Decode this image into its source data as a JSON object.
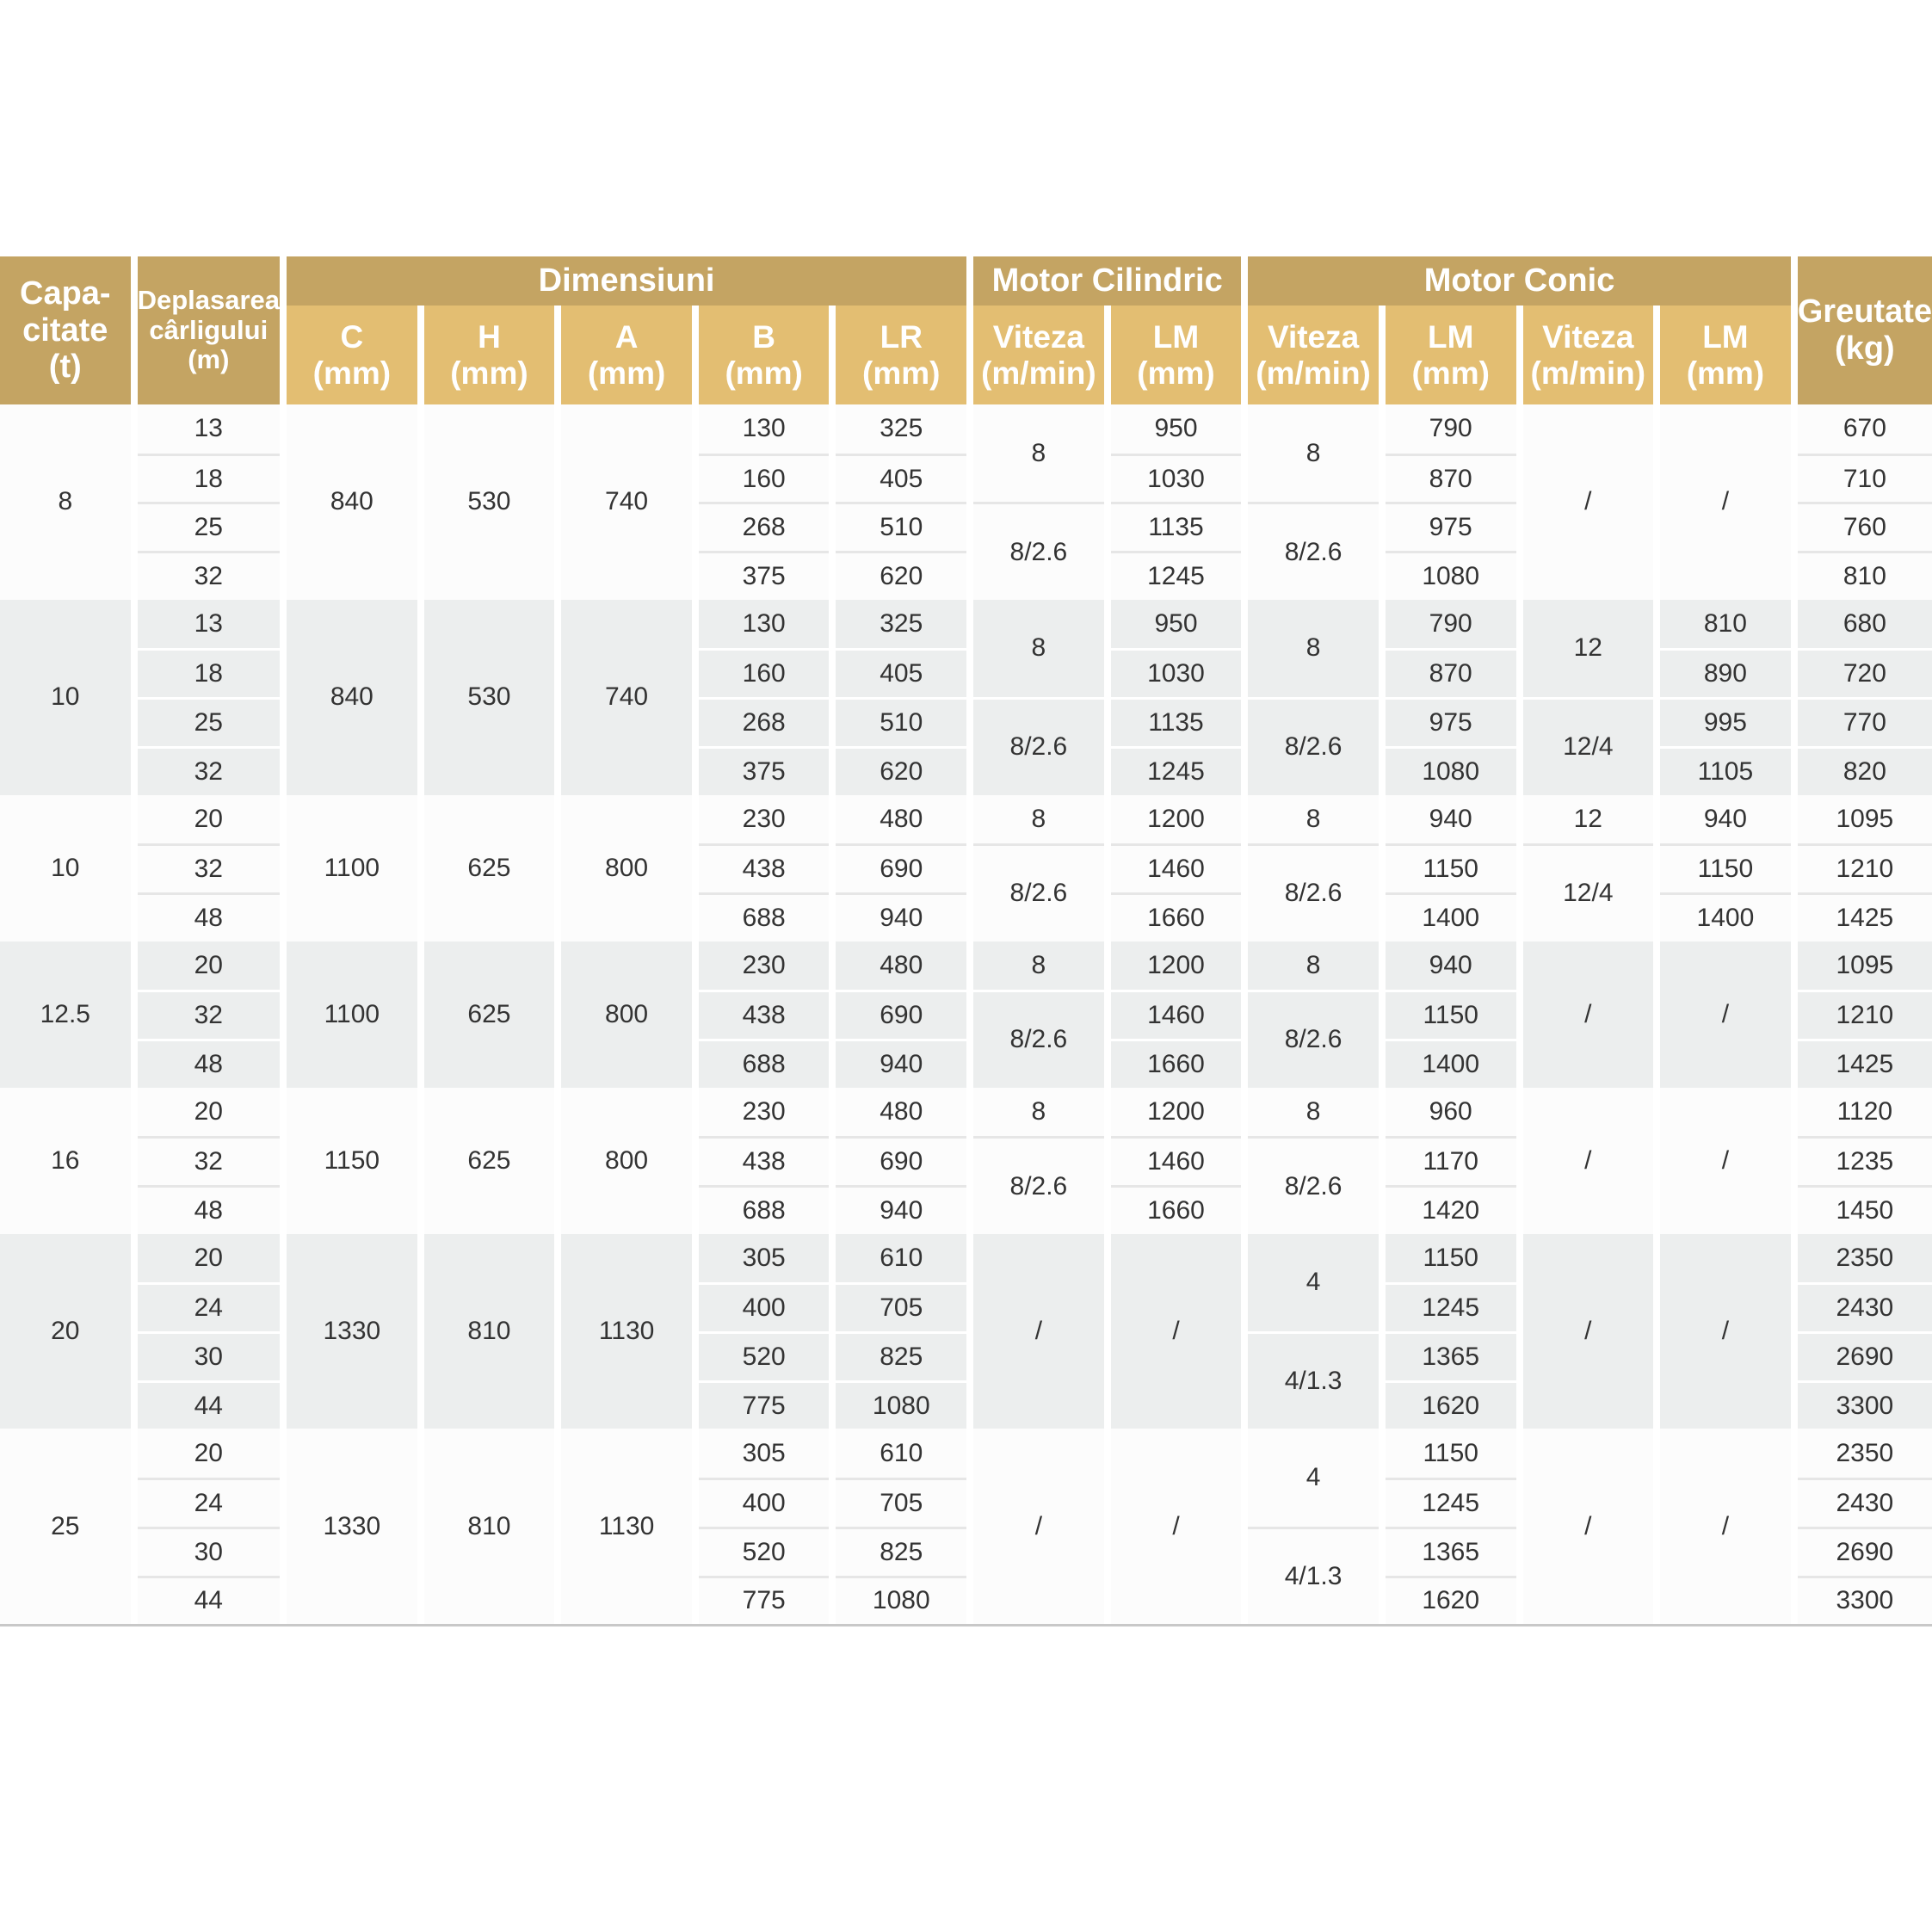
{
  "colors": {
    "header_dark": "#c4a463",
    "header_light": "#e3be72",
    "row_gray": "#eceeee"
  },
  "header": {
    "capacity": "Capa-\ncitate\n(t)",
    "travel": "Deplasarea\ncârligului\n(m)",
    "dimensions": "Dimensiuni",
    "motor_cylindrical": "Motor Cilindric",
    "motor_conic": "Motor Conic",
    "weight": "Greutate\n(kg)",
    "sub": [
      "C\n(mm)",
      "H\n(mm)",
      "A\n(mm)",
      "B\n(mm)",
      "LR\n(mm)",
      "Viteza\n(m/min)",
      "LM\n(mm)",
      "Viteza\n(m/min)",
      "LM\n(mm)",
      "Viteza\n(m/min)",
      "LM\n(mm)"
    ]
  },
  "groups": [
    {
      "rows": 4,
      "cols": [
        [
          {
            "v": "8",
            "s": 4
          }
        ],
        [
          {
            "v": "13"
          },
          {
            "v": "18"
          },
          {
            "v": "25"
          },
          {
            "v": "32"
          }
        ],
        [
          {
            "v": "840",
            "s": 4
          }
        ],
        [
          {
            "v": "530",
            "s": 4
          }
        ],
        [
          {
            "v": "740",
            "s": 4
          }
        ],
        [
          {
            "v": "130"
          },
          {
            "v": "160"
          },
          {
            "v": "268"
          },
          {
            "v": "375"
          }
        ],
        [
          {
            "v": "325"
          },
          {
            "v": "405"
          },
          {
            "v": "510"
          },
          {
            "v": "620"
          }
        ],
        [
          {
            "v": "8",
            "s": 2
          },
          {
            "v": "8/2.6",
            "s": 2
          }
        ],
        [
          {
            "v": "950"
          },
          {
            "v": "1030"
          },
          {
            "v": "1135"
          },
          {
            "v": "1245"
          }
        ],
        [
          {
            "v": "8",
            "s": 2
          },
          {
            "v": "8/2.6",
            "s": 2
          }
        ],
        [
          {
            "v": "790"
          },
          {
            "v": "870"
          },
          {
            "v": "975"
          },
          {
            "v": "1080"
          }
        ],
        [
          {
            "v": "/",
            "s": 4
          }
        ],
        [
          {
            "v": "/",
            "s": 4
          }
        ],
        [
          {
            "v": "670"
          },
          {
            "v": "710"
          },
          {
            "v": "760"
          },
          {
            "v": "810"
          }
        ]
      ]
    },
    {
      "rows": 4,
      "cols": [
        [
          {
            "v": "10",
            "s": 4
          }
        ],
        [
          {
            "v": "13"
          },
          {
            "v": "18"
          },
          {
            "v": "25"
          },
          {
            "v": "32"
          }
        ],
        [
          {
            "v": "840",
            "s": 4
          }
        ],
        [
          {
            "v": "530",
            "s": 4
          }
        ],
        [
          {
            "v": "740",
            "s": 4
          }
        ],
        [
          {
            "v": "130"
          },
          {
            "v": "160"
          },
          {
            "v": "268"
          },
          {
            "v": "375"
          }
        ],
        [
          {
            "v": "325"
          },
          {
            "v": "405"
          },
          {
            "v": "510"
          },
          {
            "v": "620"
          }
        ],
        [
          {
            "v": "8",
            "s": 2
          },
          {
            "v": "8/2.6",
            "s": 2
          }
        ],
        [
          {
            "v": "950"
          },
          {
            "v": "1030"
          },
          {
            "v": "1135"
          },
          {
            "v": "1245"
          }
        ],
        [
          {
            "v": "8",
            "s": 2
          },
          {
            "v": "8/2.6",
            "s": 2
          }
        ],
        [
          {
            "v": "790"
          },
          {
            "v": "870"
          },
          {
            "v": "975"
          },
          {
            "v": "1080"
          }
        ],
        [
          {
            "v": "12",
            "s": 2
          },
          {
            "v": "12/4",
            "s": 2
          }
        ],
        [
          {
            "v": "810"
          },
          {
            "v": "890"
          },
          {
            "v": "995"
          },
          {
            "v": "1105"
          }
        ],
        [
          {
            "v": "680"
          },
          {
            "v": "720"
          },
          {
            "v": "770"
          },
          {
            "v": "820"
          }
        ]
      ]
    },
    {
      "rows": 3,
      "cols": [
        [
          {
            "v": "10",
            "s": 3
          }
        ],
        [
          {
            "v": "20"
          },
          {
            "v": "32"
          },
          {
            "v": "48"
          }
        ],
        [
          {
            "v": "1100",
            "s": 3
          }
        ],
        [
          {
            "v": "625",
            "s": 3
          }
        ],
        [
          {
            "v": "800",
            "s": 3
          }
        ],
        [
          {
            "v": "230"
          },
          {
            "v": "438"
          },
          {
            "v": "688"
          }
        ],
        [
          {
            "v": "480"
          },
          {
            "v": "690"
          },
          {
            "v": "940"
          }
        ],
        [
          {
            "v": "8"
          },
          {
            "v": "8/2.6",
            "s": 2
          }
        ],
        [
          {
            "v": "1200"
          },
          {
            "v": "1460"
          },
          {
            "v": "1660"
          }
        ],
        [
          {
            "v": "8"
          },
          {
            "v": "8/2.6",
            "s": 2
          }
        ],
        [
          {
            "v": "940"
          },
          {
            "v": "1150"
          },
          {
            "v": "1400"
          }
        ],
        [
          {
            "v": "12"
          },
          {
            "v": "12/4",
            "s": 2
          }
        ],
        [
          {
            "v": "940"
          },
          {
            "v": "1150"
          },
          {
            "v": "1400"
          }
        ],
        [
          {
            "v": "1095"
          },
          {
            "v": "1210"
          },
          {
            "v": "1425"
          }
        ]
      ]
    },
    {
      "rows": 3,
      "cols": [
        [
          {
            "v": "12.5",
            "s": 3
          }
        ],
        [
          {
            "v": "20"
          },
          {
            "v": "32"
          },
          {
            "v": "48"
          }
        ],
        [
          {
            "v": "1100",
            "s": 3
          }
        ],
        [
          {
            "v": "625",
            "s": 3
          }
        ],
        [
          {
            "v": "800",
            "s": 3
          }
        ],
        [
          {
            "v": "230"
          },
          {
            "v": "438"
          },
          {
            "v": "688"
          }
        ],
        [
          {
            "v": "480"
          },
          {
            "v": "690"
          },
          {
            "v": "940"
          }
        ],
        [
          {
            "v": "8"
          },
          {
            "v": "8/2.6",
            "s": 2
          }
        ],
        [
          {
            "v": "1200"
          },
          {
            "v": "1460"
          },
          {
            "v": "1660"
          }
        ],
        [
          {
            "v": "8"
          },
          {
            "v": "8/2.6",
            "s": 2
          }
        ],
        [
          {
            "v": "940"
          },
          {
            "v": "1150"
          },
          {
            "v": "1400"
          }
        ],
        [
          {
            "v": "/",
            "s": 3
          }
        ],
        [
          {
            "v": "/",
            "s": 3
          }
        ],
        [
          {
            "v": "1095"
          },
          {
            "v": "1210"
          },
          {
            "v": "1425"
          }
        ]
      ]
    },
    {
      "rows": 3,
      "cols": [
        [
          {
            "v": "16",
            "s": 3
          }
        ],
        [
          {
            "v": "20"
          },
          {
            "v": "32"
          },
          {
            "v": "48"
          }
        ],
        [
          {
            "v": "1150",
            "s": 3
          }
        ],
        [
          {
            "v": "625",
            "s": 3
          }
        ],
        [
          {
            "v": "800",
            "s": 3
          }
        ],
        [
          {
            "v": "230"
          },
          {
            "v": "438"
          },
          {
            "v": "688"
          }
        ],
        [
          {
            "v": "480"
          },
          {
            "v": "690"
          },
          {
            "v": "940"
          }
        ],
        [
          {
            "v": "8"
          },
          {
            "v": "8/2.6",
            "s": 2
          }
        ],
        [
          {
            "v": "1200"
          },
          {
            "v": "1460"
          },
          {
            "v": "1660"
          }
        ],
        [
          {
            "v": "8"
          },
          {
            "v": "8/2.6",
            "s": 2
          }
        ],
        [
          {
            "v": "960"
          },
          {
            "v": "1170"
          },
          {
            "v": "1420"
          }
        ],
        [
          {
            "v": "/",
            "s": 3
          }
        ],
        [
          {
            "v": "/",
            "s": 3
          }
        ],
        [
          {
            "v": "1120"
          },
          {
            "v": "1235"
          },
          {
            "v": "1450"
          }
        ]
      ]
    },
    {
      "rows": 4,
      "cols": [
        [
          {
            "v": "20",
            "s": 4
          }
        ],
        [
          {
            "v": "20"
          },
          {
            "v": "24"
          },
          {
            "v": "30"
          },
          {
            "v": "44"
          }
        ],
        [
          {
            "v": "1330",
            "s": 4
          }
        ],
        [
          {
            "v": "810",
            "s": 4
          }
        ],
        [
          {
            "v": "1130",
            "s": 4
          }
        ],
        [
          {
            "v": "305"
          },
          {
            "v": "400"
          },
          {
            "v": "520"
          },
          {
            "v": "775"
          }
        ],
        [
          {
            "v": "610"
          },
          {
            "v": "705"
          },
          {
            "v": "825"
          },
          {
            "v": "1080"
          }
        ],
        [
          {
            "v": "/",
            "s": 4
          }
        ],
        [
          {
            "v": "/",
            "s": 4
          }
        ],
        [
          {
            "v": "4",
            "s": 2
          },
          {
            "v": "4/1.3",
            "s": 2
          }
        ],
        [
          {
            "v": "1150"
          },
          {
            "v": "1245"
          },
          {
            "v": "1365"
          },
          {
            "v": "1620"
          }
        ],
        [
          {
            "v": "/",
            "s": 4
          }
        ],
        [
          {
            "v": "/",
            "s": 4
          }
        ],
        [
          {
            "v": "2350"
          },
          {
            "v": "2430"
          },
          {
            "v": "2690"
          },
          {
            "v": "3300"
          }
        ]
      ]
    },
    {
      "rows": 4,
      "cols": [
        [
          {
            "v": "25",
            "s": 4
          }
        ],
        [
          {
            "v": "20"
          },
          {
            "v": "24"
          },
          {
            "v": "30"
          },
          {
            "v": "44"
          }
        ],
        [
          {
            "v": "1330",
            "s": 4
          }
        ],
        [
          {
            "v": "810",
            "s": 4
          }
        ],
        [
          {
            "v": "1130",
            "s": 4
          }
        ],
        [
          {
            "v": "305"
          },
          {
            "v": "400"
          },
          {
            "v": "520"
          },
          {
            "v": "775"
          }
        ],
        [
          {
            "v": "610"
          },
          {
            "v": "705"
          },
          {
            "v": "825"
          },
          {
            "v": "1080"
          }
        ],
        [
          {
            "v": "/",
            "s": 4
          }
        ],
        [
          {
            "v": "/",
            "s": 4
          }
        ],
        [
          {
            "v": "4",
            "s": 2
          },
          {
            "v": "4/1.3",
            "s": 2
          }
        ],
        [
          {
            "v": "1150"
          },
          {
            "v": "1245"
          },
          {
            "v": "1365"
          },
          {
            "v": "1620"
          }
        ],
        [
          {
            "v": "/",
            "s": 4
          }
        ],
        [
          {
            "v": "/",
            "s": 4
          }
        ],
        [
          {
            "v": "2350"
          },
          {
            "v": "2430"
          },
          {
            "v": "2690"
          },
          {
            "v": "3300"
          }
        ]
      ]
    }
  ]
}
